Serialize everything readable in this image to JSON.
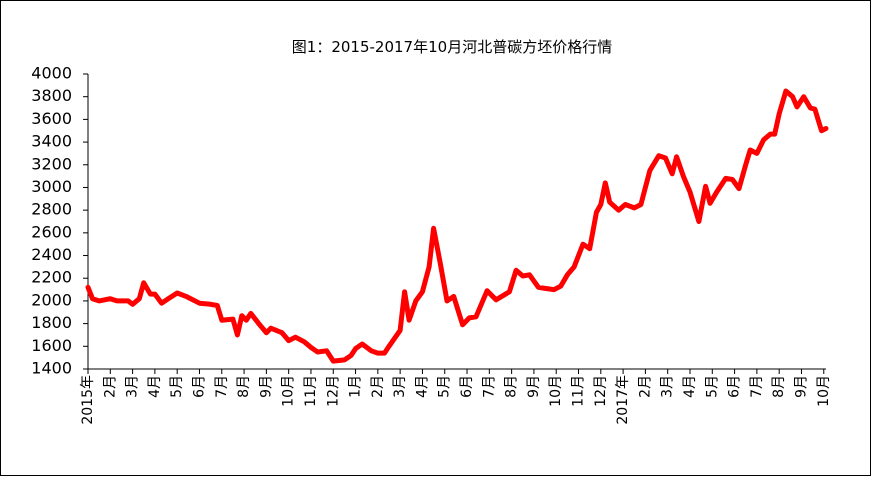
{
  "chart_data": {
    "type": "line",
    "title": "图1：2015-2017年10月河北普碳方坯价格行情",
    "color": "#ff0000",
    "x": [
      0,
      0.2,
      0.5,
      1,
      1.3,
      1.8,
      2,
      2.3,
      2.5,
      2.8,
      3,
      3.3,
      3.6,
      4,
      4.4,
      5,
      5.5,
      5.8,
      6,
      6.5,
      6.7,
      6.9,
      7.1,
      7.3,
      7.7,
      8,
      8.2,
      8.7,
      9,
      9.3,
      9.7,
      10,
      10.3,
      10.7,
      11,
      11.5,
      11.8,
      12,
      12.3,
      12.7,
      13,
      13.3,
      13.5,
      14,
      14.2,
      14.4,
      14.7,
      15,
      15.3,
      15.5,
      15.8,
      16.1,
      16.4,
      16.8,
      17.1,
      17.4,
      17.9,
      18.3,
      18.9,
      19.2,
      19.5,
      19.8,
      20.2,
      20.5,
      20.9,
      21.2,
      21.5,
      21.8,
      22.2,
      22.5,
      22.8,
      23,
      23.2,
      23.4,
      23.8,
      24.1,
      24.5,
      24.8,
      25.2,
      25.6,
      25.9,
      26.2,
      26.4,
      26.7,
      27,
      27.4,
      27.7,
      27.9,
      28.2,
      28.6,
      28.9,
      29.2,
      29.5,
      29.7,
      30,
      30.3,
      30.6,
      30.8,
      31,
      31.3,
      31.6,
      31.8,
      32.1,
      32.4,
      32.6,
      32.9,
      33.1
    ],
    "values": [
      2120,
      2020,
      2000,
      2020,
      2000,
      2000,
      1970,
      2020,
      2160,
      2060,
      2060,
      1980,
      2020,
      2070,
      2040,
      1980,
      1970,
      1960,
      1830,
      1840,
      1700,
      1870,
      1830,
      1890,
      1790,
      1720,
      1760,
      1720,
      1650,
      1680,
      1640,
      1590,
      1550,
      1560,
      1470,
      1480,
      1520,
      1580,
      1620,
      1560,
      1540,
      1540,
      1600,
      1740,
      2080,
      1830,
      2000,
      2080,
      2300,
      2640,
      2330,
      2000,
      2040,
      1790,
      1850,
      1860,
      2090,
      2010,
      2080,
      2270,
      2220,
      2230,
      2120,
      2110,
      2100,
      2130,
      2230,
      2300,
      2500,
      2460,
      2780,
      2850,
      3040,
      2870,
      2800,
      2850,
      2820,
      2850,
      3150,
      3280,
      3260,
      3120,
      3270,
      3100,
      2960,
      2700,
      3010,
      2860,
      2960,
      3080,
      3070,
      2990,
      3200,
      3330,
      3300,
      3420,
      3470,
      3470,
      3650,
      3850,
      3800,
      3710,
      3800,
      3700,
      3690,
      3500,
      3520
    ],
    "xlim": [
      0,
      33.1
    ],
    "xticks": [
      {
        "value": 0,
        "label": "2015年"
      },
      {
        "value": 1,
        "label": "2月"
      },
      {
        "value": 2,
        "label": "3月"
      },
      {
        "value": 3,
        "label": "4月"
      },
      {
        "value": 4,
        "label": "5月"
      },
      {
        "value": 5,
        "label": "6月"
      },
      {
        "value": 6,
        "label": "7月"
      },
      {
        "value": 7,
        "label": "8月"
      },
      {
        "value": 8,
        "label": "9月"
      },
      {
        "value": 9,
        "label": "10月"
      },
      {
        "value": 10,
        "label": "11月"
      },
      {
        "value": 11,
        "label": "12月"
      },
      {
        "value": 12,
        "label": "1月"
      },
      {
        "value": 13,
        "label": "2月"
      },
      {
        "value": 14,
        "label": "3月"
      },
      {
        "value": 15,
        "label": "4月"
      },
      {
        "value": 16,
        "label": "5月"
      },
      {
        "value": 17,
        "label": "6月"
      },
      {
        "value": 18,
        "label": "7月"
      },
      {
        "value": 19,
        "label": "8月"
      },
      {
        "value": 20,
        "label": "9月"
      },
      {
        "value": 21,
        "label": "10月"
      },
      {
        "value": 22,
        "label": "11月"
      },
      {
        "value": 23,
        "label": "12月"
      },
      {
        "value": 24,
        "label": "2017年"
      },
      {
        "value": 25,
        "label": "2月"
      },
      {
        "value": 26,
        "label": "3月"
      },
      {
        "value": 27,
        "label": "4月"
      },
      {
        "value": 28,
        "label": "5月"
      },
      {
        "value": 29,
        "label": "6月"
      },
      {
        "value": 30,
        "label": "7月"
      },
      {
        "value": 31,
        "label": "8月"
      },
      {
        "value": 32,
        "label": "9月"
      },
      {
        "value": 33,
        "label": "10月"
      }
    ],
    "ylim": [
      1400,
      4000
    ],
    "yticks": [
      1400,
      1600,
      1800,
      2000,
      2200,
      2400,
      2600,
      2800,
      3000,
      3200,
      3400,
      3600,
      3800,
      4000
    ],
    "grid": false
  }
}
